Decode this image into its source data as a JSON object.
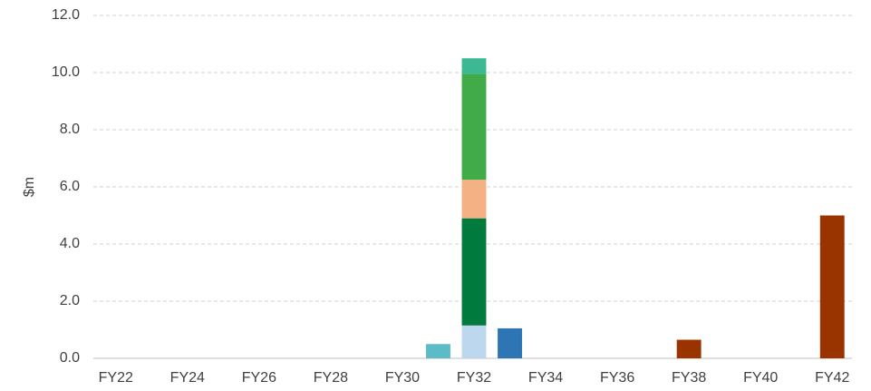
{
  "chart_data": {
    "type": "stacked_bar",
    "ylabel": "$m",
    "categories": [
      "FY22",
      null,
      "FY24",
      null,
      "FY26",
      null,
      "FY28",
      null,
      "FY30",
      null,
      "FY32",
      null,
      "FY34",
      null,
      "FY36",
      null,
      "FY38",
      null,
      "FY40",
      null,
      "FY42"
    ],
    "series": [
      {
        "color": "#5bbcc8",
        "values": [
          null,
          null,
          null,
          null,
          null,
          null,
          null,
          null,
          null,
          0.5,
          null,
          null,
          null,
          null,
          null,
          null,
          null,
          null,
          null,
          null,
          null
        ]
      },
      {
        "color": "#bdd7ee",
        "values": [
          null,
          null,
          null,
          null,
          null,
          null,
          null,
          null,
          null,
          null,
          1.15,
          null,
          null,
          null,
          null,
          null,
          null,
          null,
          null,
          null,
          null
        ]
      },
      {
        "color": "#007a3d",
        "values": [
          null,
          null,
          null,
          null,
          null,
          null,
          null,
          null,
          null,
          null,
          3.75,
          null,
          null,
          null,
          null,
          null,
          null,
          null,
          null,
          null,
          null
        ]
      },
      {
        "color": "#f4b183",
        "values": [
          null,
          null,
          null,
          null,
          null,
          null,
          null,
          null,
          null,
          null,
          1.35,
          null,
          null,
          null,
          null,
          null,
          null,
          null,
          null,
          null,
          null
        ]
      },
      {
        "color": "#41ab4a",
        "values": [
          null,
          null,
          null,
          null,
          null,
          null,
          null,
          null,
          null,
          null,
          3.7,
          null,
          null,
          null,
          null,
          null,
          null,
          null,
          null,
          null,
          null
        ]
      },
      {
        "color": "#3cb992",
        "values": [
          null,
          null,
          null,
          null,
          null,
          null,
          null,
          null,
          null,
          null,
          0.55,
          null,
          null,
          null,
          null,
          null,
          null,
          null,
          null,
          null,
          null
        ]
      },
      {
        "color": "#2e75b6",
        "values": [
          null,
          null,
          null,
          null,
          null,
          null,
          null,
          null,
          null,
          null,
          null,
          1.05,
          null,
          null,
          null,
          null,
          null,
          null,
          null,
          null,
          null
        ]
      },
      {
        "color": "#993300",
        "values": [
          null,
          null,
          null,
          null,
          null,
          null,
          null,
          null,
          null,
          null,
          null,
          null,
          null,
          null,
          null,
          null,
          0.65,
          null,
          null,
          null,
          5.0
        ]
      }
    ],
    "ylim": [
      0,
      12
    ],
    "yticks": [
      {
        "value": 0,
        "label": "0.0"
      },
      {
        "value": 2,
        "label": "2.0"
      },
      {
        "value": 4,
        "label": "4.0"
      },
      {
        "value": 6,
        "label": "6.0"
      },
      {
        "value": 8,
        "label": "8.0"
      },
      {
        "value": 10,
        "label": "10.0"
      },
      {
        "value": 12,
        "label": "12.0"
      }
    ],
    "grid": true
  }
}
